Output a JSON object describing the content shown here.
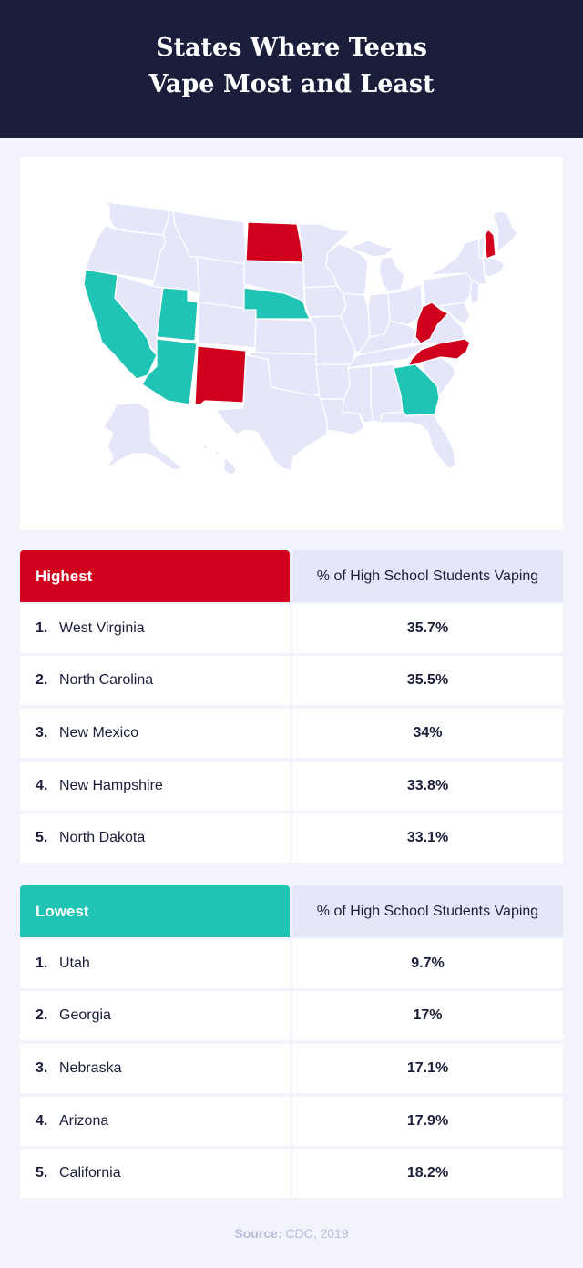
{
  "title": {
    "line1": "States Where Teens",
    "line2": "Vape Most and Least"
  },
  "map": {
    "colors": {
      "base": "#e6e6fb",
      "border": "#ffffff",
      "highest": "#d1001c",
      "lowest": "#1fc4b5"
    },
    "highest_states": [
      "West Virginia",
      "North Carolina",
      "New Mexico",
      "New Hampshire",
      "North Dakota"
    ],
    "lowest_states": [
      "Utah",
      "Georgia",
      "Nebraska",
      "Arizona",
      "California"
    ]
  },
  "highest": {
    "header": "Highest",
    "column": "% of High School Students Vaping",
    "rows": [
      {
        "rank": "1.",
        "state": "West Virginia",
        "value": "35.7%"
      },
      {
        "rank": "2.",
        "state": "North Carolina",
        "value": "35.5%"
      },
      {
        "rank": "3.",
        "state": "New Mexico",
        "value": "34%"
      },
      {
        "rank": "4.",
        "state": "New Hampshire",
        "value": "33.8%"
      },
      {
        "rank": "5.",
        "state": "North Dakota",
        "value": "33.1%"
      }
    ]
  },
  "lowest": {
    "header": "Lowest",
    "column": "% of High School Students Vaping",
    "rows": [
      {
        "rank": "1.",
        "state": "Utah",
        "value": "9.7%"
      },
      {
        "rank": "2.",
        "state": "Georgia",
        "value": "17%"
      },
      {
        "rank": "3.",
        "state": "Nebraska",
        "value": "17.1%"
      },
      {
        "rank": "4.",
        "state": "Arizona",
        "value": "17.9%"
      },
      {
        "rank": "5.",
        "state": "California",
        "value": "18.2%"
      }
    ]
  },
  "source": {
    "label": "Source:",
    "text": "CDC, 2019"
  }
}
